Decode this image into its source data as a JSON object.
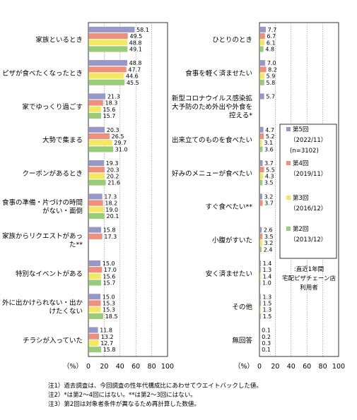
{
  "chart_data": {
    "type": "bar",
    "orientation": "horizontal",
    "xlim": [
      0,
      100
    ],
    "xticks": [
      "0",
      "20",
      "40",
      "60",
      "80",
      "100"
    ],
    "unit_label": "（%）",
    "series": [
      {
        "name": "第5回\n（2022/11）\n(n=3102)",
        "color": "#9898c8"
      },
      {
        "name": "第4回\n（2019/11）",
        "color": "#f0907c"
      },
      {
        "name": "第3回\n（2016/12）",
        "color": "#f4e860"
      },
      {
        "name": "第2回\n（2013/12）",
        "color": "#98cc78"
      }
    ],
    "panels": [
      {
        "categories": [
          {
            "label": "家族といるとき",
            "values": [
              58.1,
              49.5,
              48.8,
              49.1
            ]
          },
          {
            "label": "ピザが食べたくなったとき",
            "values": [
              48.8,
              47.7,
              44.6,
              45.5
            ]
          },
          {
            "label": "家でゆっくり過ごす",
            "values": [
              21.3,
              18.3,
              15.6,
              15.7
            ]
          },
          {
            "label": "大勢で集まる",
            "values": [
              20.3,
              26.5,
              29.7,
              31.0
            ]
          },
          {
            "label": "クーポンがあるとき",
            "values": [
              19.3,
              20.3,
              20.2,
              21.6
            ]
          },
          {
            "label": "食事の準備・片づけの時間がない・面倒",
            "values": [
              17.3,
              18.2,
              19.0,
              20.1
            ]
          },
          {
            "label": "家族からリクエストがあった**",
            "values": [
              15.8,
              17.3,
              null,
              null
            ]
          },
          {
            "label": "特別なイベントがある",
            "values": [
              15.0,
              17.0,
              15.6,
              15.7
            ]
          },
          {
            "label": "外に出かけられない・出かけたくない",
            "values": [
              15.0,
              15.3,
              15.3,
              18.5
            ]
          },
          {
            "label": "チラシが入っていた",
            "values": [
              11.8,
              13.2,
              12.7,
              15.8
            ]
          }
        ]
      },
      {
        "categories": [
          {
            "label": "ひとりのとき",
            "values": [
              7.7,
              6.7,
              6.1,
              4.8
            ]
          },
          {
            "label": "食事を軽く済ませたい",
            "values": [
              7.0,
              8.2,
              5.9,
              5.8
            ]
          },
          {
            "label": "新型コロナウイルス感染拡大予防のため外出や外食を控える*",
            "values": [
              5.7,
              null,
              null,
              null
            ]
          },
          {
            "label": "出来立てのものを食べたい",
            "values": [
              4.7,
              5.2,
              3.1,
              3.6
            ]
          },
          {
            "label": "好みのメニューが食べたい",
            "values": [
              3.7,
              5.5,
              4.3,
              3.5
            ]
          },
          {
            "label": "すぐ食べたい**",
            "values": [
              3.2,
              3.7,
              null,
              null
            ]
          },
          {
            "label": "小腹がすいた",
            "values": [
              2.6,
              3.5,
              3.2,
              2.4
            ]
          },
          {
            "label": "安く済ませたい",
            "values": [
              1.4,
              1.3,
              1.4,
              1.0
            ]
          },
          {
            "label": "その他",
            "values": [
              1.3,
              1.5,
              1.3,
              1.5
            ]
          },
          {
            "label": "無回答",
            "values": [
              0.1,
              0.2,
              0.3,
              0.1
            ]
          }
        ]
      }
    ],
    "legend_note": ":直近1年間\n宅配ピザチェーン店\n利用者"
  },
  "notes": [
    "注1）過去調査は、今回調査の性年代構成比にあわせてウエイトバックした値。",
    "注2）*は第2～4回にはない。**は第2～3回にはない。",
    "注3）第2回は対象者条件が異なるため再計算した数値。"
  ]
}
